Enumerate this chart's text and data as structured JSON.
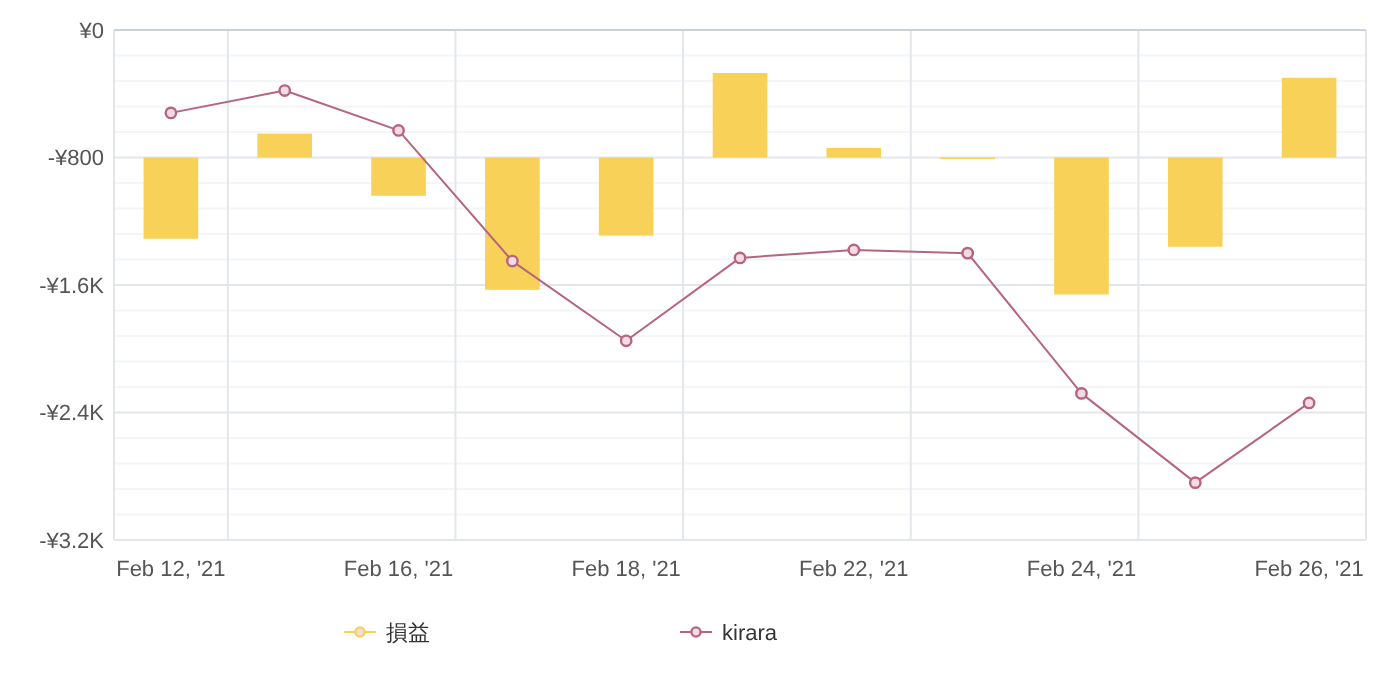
{
  "chart_data": {
    "type": "bar",
    "categories": [
      "Feb 12, '21",
      null,
      "Feb 16, '21",
      null,
      "Feb 18, '21",
      null,
      "Feb 22, '21",
      null,
      "Feb 24, '21",
      null,
      "Feb 26, '21"
    ],
    "series": [
      {
        "name": "損益",
        "color": "#f8d159",
        "base": [
          -800,
          -800,
          -800,
          -800,
          -800,
          -800,
          -800,
          -800,
          -800,
          -800,
          -800
        ],
        "values": [
          -510,
          150,
          -240,
          -830,
          -490,
          530,
          60,
          -10,
          -860,
          -560,
          500
        ]
      },
      {
        "name": "kirara",
        "type": "line",
        "color": "#b5657f",
        "values": [
          -520,
          -380,
          -630,
          -1450,
          -1950,
          -1430,
          -1380,
          -1400,
          -2280,
          -2840,
          -2340
        ]
      }
    ],
    "ylim": [
      -3200,
      0
    ],
    "yticks": [
      {
        "value": 0,
        "label": "¥0"
      },
      {
        "value": -800,
        "label": "-¥800"
      },
      {
        "value": -1600,
        "label": "-¥1.6K"
      },
      {
        "value": -2400,
        "label": "-¥2.4K"
      },
      {
        "value": -3200,
        "label": "-¥3.2K"
      }
    ],
    "grid": true,
    "legend": "bottom",
    "marker": "circle",
    "line_style": "solid"
  }
}
